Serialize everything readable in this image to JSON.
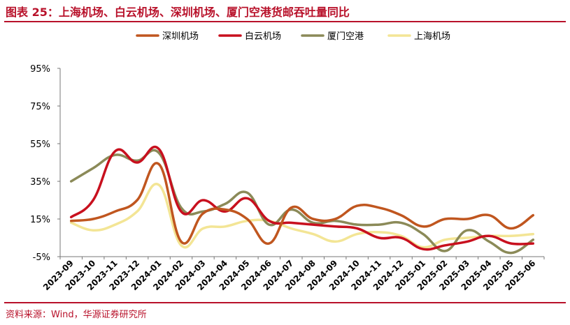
{
  "title": "图表 25：上海机场、白云机场、深圳机场、厦门空港货邮吞吐量同比",
  "source": "资料来源：Wind，华源证券研究所",
  "chart_data": {
    "type": "line",
    "x": [
      "2023-09",
      "2023-10",
      "2023-11",
      "2023-12",
      "2024-01",
      "2024-02",
      "2024-03",
      "2024-04",
      "2024-05",
      "2024-06",
      "2024-07",
      "2024-08",
      "2024-09",
      "2024-10",
      "2024-11",
      "2024-12",
      "2025-01",
      "2025-02",
      "2025-03",
      "2025-04",
      "2025-05",
      "2025-06"
    ],
    "y_ticks": [
      "95%",
      "75%",
      "55%",
      "35%",
      "15%",
      "-5%"
    ],
    "ylim": [
      -5,
      95
    ],
    "grid": false,
    "legend": "top",
    "series": [
      {
        "name": "深圳机场",
        "color": "#c0561f",
        "values": [
          14,
          15,
          19,
          25,
          44,
          3,
          18,
          20,
          15,
          2,
          21,
          15,
          15,
          22,
          21,
          17,
          11,
          15,
          15,
          17,
          10,
          17
        ]
      },
      {
        "name": "白云机场",
        "color": "#c8101e",
        "values": [
          16,
          25,
          51,
          45,
          52,
          19,
          25,
          19,
          26,
          14,
          13,
          12,
          11,
          10,
          5,
          5,
          -1,
          1,
          3,
          6,
          2,
          2
        ]
      },
      {
        "name": "厦门空港",
        "color": "#8b8a58",
        "values": [
          35,
          42,
          49,
          46,
          50,
          21,
          19,
          23,
          29,
          12,
          20,
          13,
          14,
          12,
          12,
          13,
          7,
          -2,
          9,
          3,
          -3,
          4
        ]
      },
      {
        "name": "上海机场",
        "color": "#f3e595",
        "values": [
          13,
          9,
          12,
          19,
          33,
          1,
          10,
          11,
          14,
          14,
          10,
          7,
          3,
          7,
          8,
          6,
          0,
          4,
          5,
          6,
          6,
          7
        ]
      }
    ]
  }
}
